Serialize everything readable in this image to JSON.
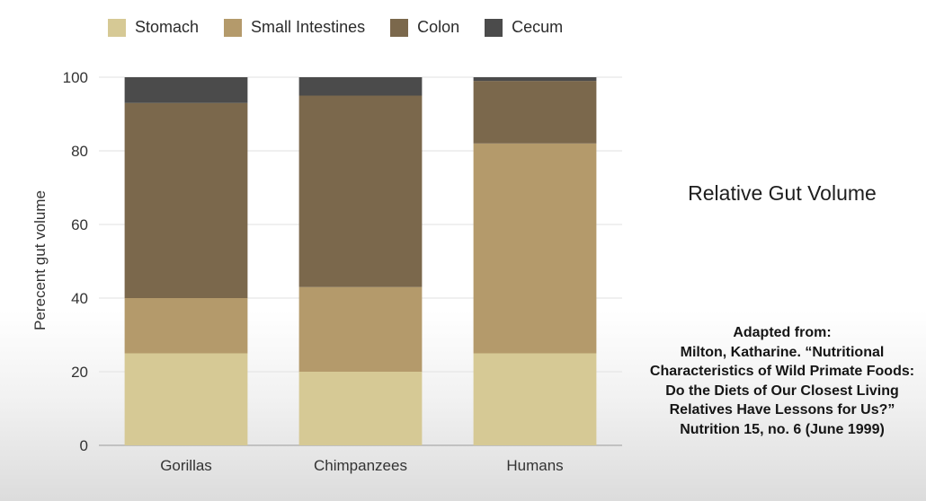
{
  "chart_data": {
    "type": "bar",
    "stacked": true,
    "title": "Relative Gut Volume",
    "xlabel": "",
    "ylabel": "Perecent gut volume",
    "ylim": [
      0,
      100
    ],
    "yticks": [
      0,
      20,
      40,
      60,
      80,
      100
    ],
    "grid": true,
    "legend_position": "top",
    "categories": [
      "Gorillas",
      "Chimpanzees",
      "Humans"
    ],
    "series": [
      {
        "name": "Stomach",
        "color": "#d6c995",
        "values": [
          25,
          20,
          25
        ]
      },
      {
        "name": "Small Intestines",
        "color": "#b49a6b",
        "values": [
          15,
          23,
          57
        ]
      },
      {
        "name": "Colon",
        "color": "#7b684c",
        "values": [
          53,
          52,
          17
        ]
      },
      {
        "name": "Cecum",
        "color": "#4b4b4b",
        "values": [
          7,
          5,
          1
        ]
      }
    ]
  },
  "citation": {
    "lines": [
      "Adapted from:",
      "Milton, Katharine. “Nutritional",
      "Characteristics of Wild Primate Foods:",
      "Do the Diets of Our Closest Living",
      "Relatives Have Lessons for Us?”",
      "Nutrition 15, no. 6 (June 1999)"
    ]
  }
}
